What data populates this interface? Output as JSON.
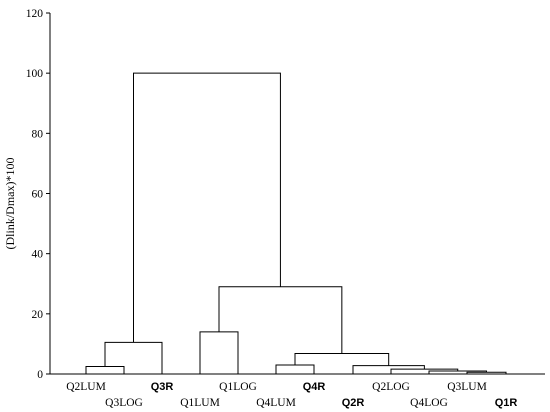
{
  "chart_data": {
    "type": "dendrogram",
    "title": "",
    "ylabel": "(Dlink/Dmax)*100",
    "xlabel": "",
    "ylim": [
      0,
      120
    ],
    "yticks": [
      0,
      20,
      40,
      60,
      80,
      100,
      120
    ],
    "grid": false,
    "leaves": [
      {
        "label": "Q2LUM",
        "bold": false,
        "row": "upper"
      },
      {
        "label": "Q3LOG",
        "bold": false,
        "row": "lower"
      },
      {
        "label": "Q3R",
        "bold": true,
        "row": "upper"
      },
      {
        "label": "Q1LUM",
        "bold": false,
        "row": "lower"
      },
      {
        "label": "Q1LOG",
        "bold": false,
        "row": "upper"
      },
      {
        "label": "Q4LUM",
        "bold": false,
        "row": "lower"
      },
      {
        "label": "Q4R",
        "bold": true,
        "row": "upper"
      },
      {
        "label": "Q2R",
        "bold": true,
        "row": "lower"
      },
      {
        "label": "Q2LOG",
        "bold": false,
        "row": "upper"
      },
      {
        "label": "Q4LOG",
        "bold": false,
        "row": "lower"
      },
      {
        "label": "Q3LUM",
        "bold": false,
        "row": "upper"
      },
      {
        "label": "Q1R",
        "bold": true,
        "row": "lower"
      }
    ],
    "merges": [
      {
        "id": "m1",
        "left": 0,
        "right": 1,
        "height": 2.5
      },
      {
        "id": "m2",
        "left": "m1",
        "right": 2,
        "height": 10.5
      },
      {
        "id": "m3",
        "left": 3,
        "right": 4,
        "height": 14
      },
      {
        "id": "m4",
        "left": 10,
        "right": 11,
        "height": 0.6
      },
      {
        "id": "m5",
        "left": 9,
        "right": "m4",
        "height": 1
      },
      {
        "id": "m6",
        "left": 8,
        "right": "m5",
        "height": 1.6
      },
      {
        "id": "m7",
        "left": 7,
        "right": "m6",
        "height": 2.8
      },
      {
        "id": "m8",
        "left": 5,
        "right": 6,
        "height": 3
      },
      {
        "id": "m9",
        "left": "m8",
        "right": "m7",
        "height": 6.8
      },
      {
        "id": "m10",
        "left": "m3",
        "right": "m9",
        "height": 29
      },
      {
        "id": "m11",
        "left": "m2",
        "right": "m10",
        "height": 100
      }
    ]
  }
}
